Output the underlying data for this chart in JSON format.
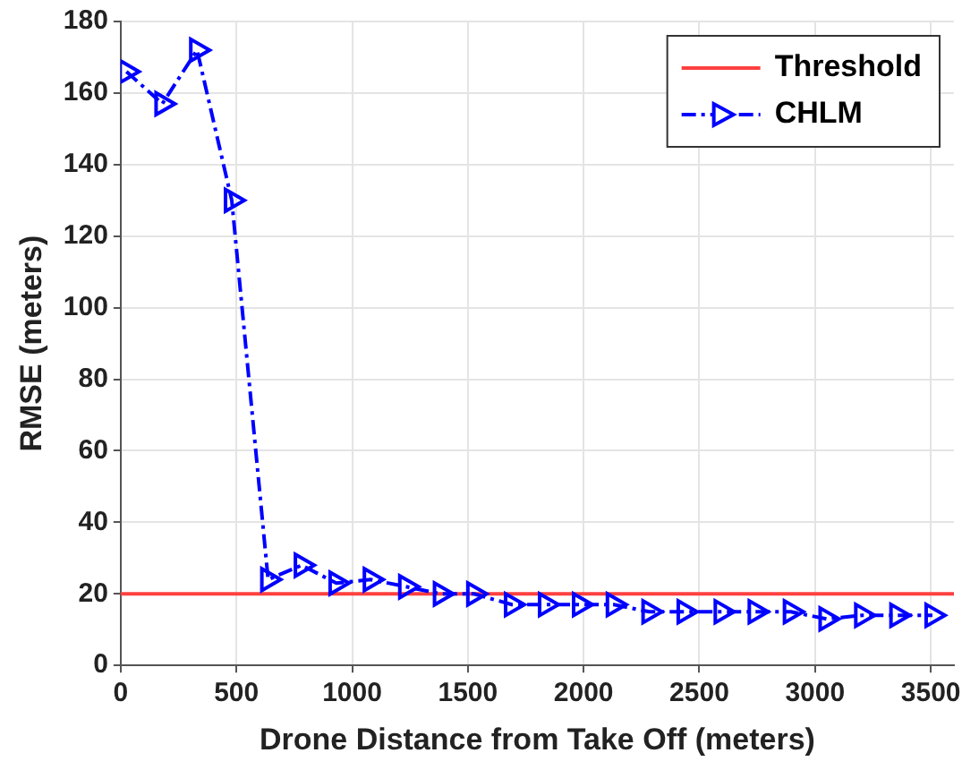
{
  "chart_data": {
    "type": "line",
    "xlabel": "Drone Distance from Take Off (meters)",
    "ylabel": "RMSE (meters)",
    "x": [
      25,
      180,
      330,
      480,
      637,
      782,
      932,
      1080,
      1233,
      1383,
      1527,
      1690,
      1837,
      1984,
      2130,
      2284,
      2436,
      2596,
      2743,
      2895,
      3049,
      3203,
      3355,
      3507
    ],
    "series": [
      {
        "name": "CHLM",
        "color": "#0000ff",
        "values": [
          166,
          157,
          172,
          130,
          24,
          28,
          23,
          24,
          22,
          20,
          20,
          17,
          17,
          17,
          17,
          15,
          15,
          15,
          15,
          15,
          13,
          14,
          14,
          14
        ]
      }
    ],
    "ref_lines": [
      {
        "axis": "y",
        "value": 20,
        "label": "Threshold",
        "color": "#ff4040",
        "line_style": "solid"
      }
    ],
    "xlim": [
      0,
      3600
    ],
    "xticks": [
      0,
      500,
      1000,
      1500,
      2000,
      2500,
      3000,
      3500
    ],
    "ylim": [
      0,
      180
    ],
    "yticks": [
      0,
      20,
      40,
      60,
      80,
      100,
      120,
      140,
      160,
      180
    ],
    "grid": true,
    "legend": "top right",
    "marker": "triangle",
    "line_style": "dashed"
  }
}
